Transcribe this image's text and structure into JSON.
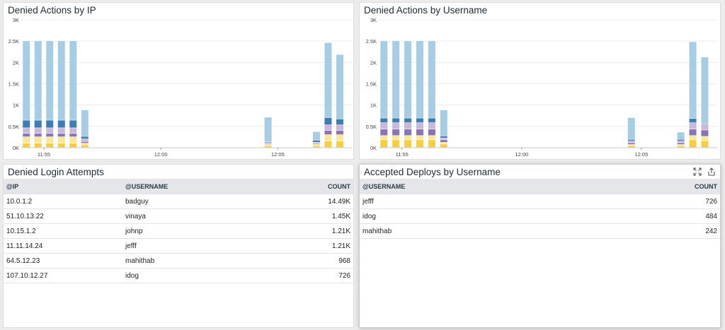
{
  "colors": {
    "light_blue": "#a6cde3",
    "dark_blue": "#3d7db5",
    "lavender": "#c7b9de",
    "purple": "#8b74b5",
    "yellow": "#f7cf3e",
    "pale_yellow": "#fbe69d"
  },
  "widgets": {
    "ip_chart": {
      "title": "Denied Actions by IP"
    },
    "user_chart": {
      "title": "Denied Actions by Username"
    },
    "login_table": {
      "title": "Denied Login Attempts",
      "headers": [
        "@IP",
        "@USERNAME",
        "COUNT"
      ],
      "rows": [
        [
          "10.0.1.2",
          "badguy",
          "14.49K"
        ],
        [
          "51.10.13.22",
          "vinaya",
          "1.45K"
        ],
        [
          "10.15.1.2",
          "johnp",
          "1.21K"
        ],
        [
          "11.11.14.24",
          "jefff",
          "1.21K"
        ],
        [
          "64.5.12.23",
          "mahithab",
          "968"
        ],
        [
          "107.10.12.27",
          "idog",
          "726"
        ]
      ]
    },
    "deploys_table": {
      "title": "Accepted Deploys by Username",
      "headers": [
        "@USERNAME",
        "COUNT"
      ],
      "rows": [
        [
          "jefff",
          "726"
        ],
        [
          "idog",
          "484"
        ],
        [
          "mahithab",
          "242"
        ]
      ],
      "icons": [
        "expand-icon",
        "share-icon"
      ]
    }
  },
  "chart_data": [
    {
      "type": "bar",
      "title": "Denied Actions by IP",
      "stacked": true,
      "yticks": [
        "0K",
        "0.5K",
        "1K",
        "1.5K",
        "2K",
        "2.5K",
        "3K"
      ],
      "ylim": [
        0,
        3000
      ],
      "xticks": [
        {
          "label": "11:55",
          "t": 13
        },
        {
          "label": "12:00",
          "t": 28
        },
        {
          "label": "12:05",
          "t": 43
        }
      ],
      "xlim": [
        10.1,
        52.5
      ],
      "bars": [
        {
          "t": 10.3,
          "stack": [
            100,
            150,
            80,
            130,
            180,
            1860
          ]
        },
        {
          "t": 11.8,
          "stack": [
            100,
            150,
            80,
            130,
            180,
            1860
          ]
        },
        {
          "t": 13.3,
          "stack": [
            100,
            150,
            80,
            130,
            180,
            1860
          ]
        },
        {
          "t": 14.8,
          "stack": [
            100,
            150,
            80,
            130,
            180,
            1860
          ]
        },
        {
          "t": 16.3,
          "stack": [
            100,
            150,
            80,
            130,
            180,
            1860
          ]
        },
        {
          "t": 17.8,
          "stack": [
            60,
            40,
            40,
            60,
            60,
            620
          ]
        },
        {
          "t": 41.3,
          "stack": [
            40,
            30,
            20,
            20,
            20,
            580
          ]
        },
        {
          "t": 47.5,
          "stack": [
            40,
            40,
            20,
            20,
            50,
            200
          ]
        },
        {
          "t": 49.0,
          "stack": [
            150,
            150,
            100,
            130,
            170,
            1760
          ]
        },
        {
          "t": 50.5,
          "stack": [
            150,
            150,
            100,
            130,
            140,
            1510
          ]
        }
      ]
    },
    {
      "type": "bar",
      "title": "Denied Actions by Username",
      "stacked": true,
      "yticks": [
        "0K",
        "0.5K",
        "1K",
        "1.5K",
        "2K",
        "2.5K",
        "3K"
      ],
      "ylim": [
        0,
        3000
      ],
      "xticks": [
        {
          "label": "11:55",
          "t": 13
        },
        {
          "label": "12:00",
          "t": 28
        },
        {
          "label": "12:05",
          "t": 43
        }
      ],
      "xlim": [
        10.1,
        52.5
      ],
      "bars": [
        {
          "t": 10.3,
          "stack": [
            180,
            100,
            150,
            150,
            110,
            1810
          ]
        },
        {
          "t": 11.8,
          "stack": [
            180,
            100,
            150,
            150,
            110,
            1810
          ]
        },
        {
          "t": 13.3,
          "stack": [
            180,
            100,
            150,
            150,
            110,
            1810
          ]
        },
        {
          "t": 14.8,
          "stack": [
            180,
            100,
            150,
            150,
            110,
            1810
          ]
        },
        {
          "t": 16.3,
          "stack": [
            180,
            100,
            150,
            150,
            110,
            1810
          ]
        },
        {
          "t": 17.8,
          "stack": [
            80,
            40,
            60,
            40,
            50,
            610
          ]
        },
        {
          "t": 41.3,
          "stack": [
            40,
            30,
            40,
            40,
            40,
            510
          ]
        },
        {
          "t": 47.5,
          "stack": [
            40,
            30,
            40,
            40,
            40,
            170
          ]
        },
        {
          "t": 49.0,
          "stack": [
            180,
            100,
            150,
            150,
            100,
            1800
          ]
        },
        {
          "t": 50.5,
          "stack": [
            160,
            100,
            150,
            140,
            20,
            1550
          ]
        }
      ]
    }
  ]
}
